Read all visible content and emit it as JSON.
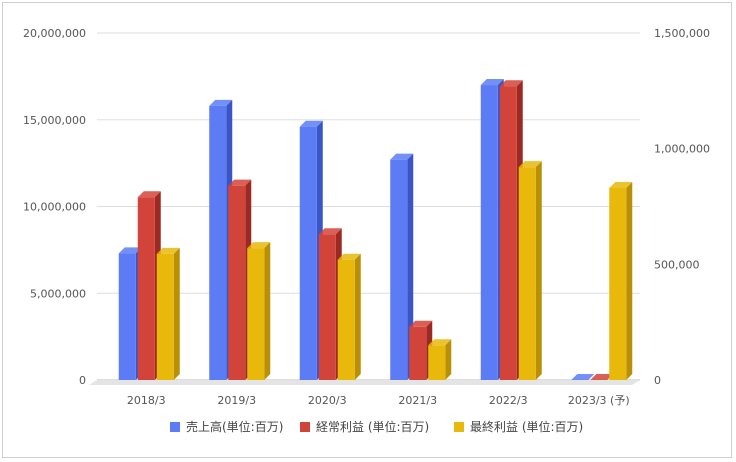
{
  "chart_data": {
    "type": "bar",
    "style": "3d",
    "categories": [
      "2018/3",
      "2019/3",
      "2020/3",
      "2021/3",
      "2022/3",
      "2023/3 (予)"
    ],
    "left_axis": {
      "ticks": [
        "0",
        "5,000,000",
        "10,000,000",
        "15,000,000",
        "20,000,000"
      ],
      "ylim": [
        0,
        20000000
      ]
    },
    "right_axis": {
      "ticks": [
        "0",
        "500,000",
        "1,000,000",
        "1,500,000"
      ],
      "ylim": [
        0,
        1500000
      ]
    },
    "series": [
      {
        "name": "売上高(単位:百万)",
        "axis": "left",
        "color": "#5b7cf5",
        "side_color": "#3a55c8",
        "values": [
          7300000,
          15800000,
          14600000,
          12700000,
          17000000,
          0
        ]
      },
      {
        "name": "経常利益 (単位:百万)",
        "axis": "right",
        "color": "#d2433a",
        "side_color": "#9c2a23",
        "values": [
          790000,
          840000,
          630000,
          230000,
          1270000,
          0
        ]
      },
      {
        "name": "最終利益 (単位:百万)",
        "axis": "right",
        "color": "#e8b90b",
        "side_color": "#b88f05",
        "values": [
          545000,
          570000,
          520000,
          150000,
          920000,
          830000
        ]
      }
    ],
    "grid": true,
    "legend_position": "bottom"
  }
}
